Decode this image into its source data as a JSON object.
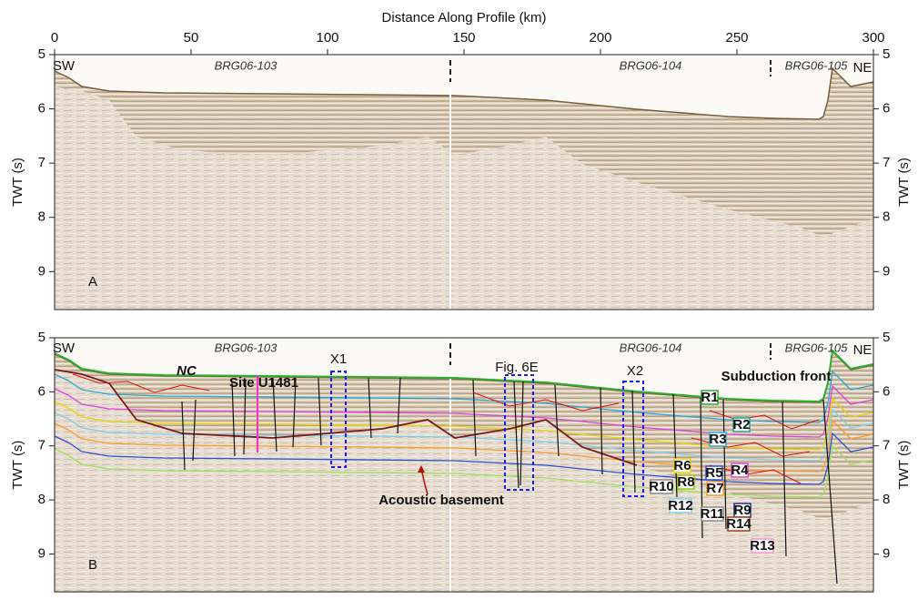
{
  "chart_data": [
    {
      "type": "seismic",
      "panel_label": "A",
      "x_label": "Distance Along Profile (km)",
      "y_label": "TWT (s)",
      "xlim": [
        0,
        300
      ],
      "xticks": [
        0,
        50,
        100,
        150,
        200,
        250,
        300
      ],
      "ylim": [
        5,
        9.7
      ],
      "y_inverted": true,
      "yticks": [
        5,
        6,
        7,
        8,
        9
      ],
      "annotations": [
        "SW",
        "BRG06-103",
        "BRG06-104",
        "BRG06-105",
        "NE"
      ]
    },
    {
      "type": "seismic",
      "panel_label": "B",
      "y_label": "TWT (s)",
      "xlim": [
        0,
        300
      ],
      "ylim": [
        5,
        9.7
      ],
      "y_inverted": true,
      "yticks": [
        5,
        6,
        7,
        8,
        9
      ],
      "annotations": [
        "SW",
        "BRG06-103",
        "BRG06-104",
        "BRG06-105",
        "NE",
        "NC",
        "Site U1481",
        "X1",
        "Fig. 6E",
        "X2",
        "Subduction front",
        "Acoustic basement",
        "R1",
        "R2",
        "R3",
        "R4",
        "R5",
        "R6",
        "R7",
        "R8",
        "R9",
        "R10",
        "R11",
        "R12",
        "R13",
        "R14"
      ]
    }
  ]
}
